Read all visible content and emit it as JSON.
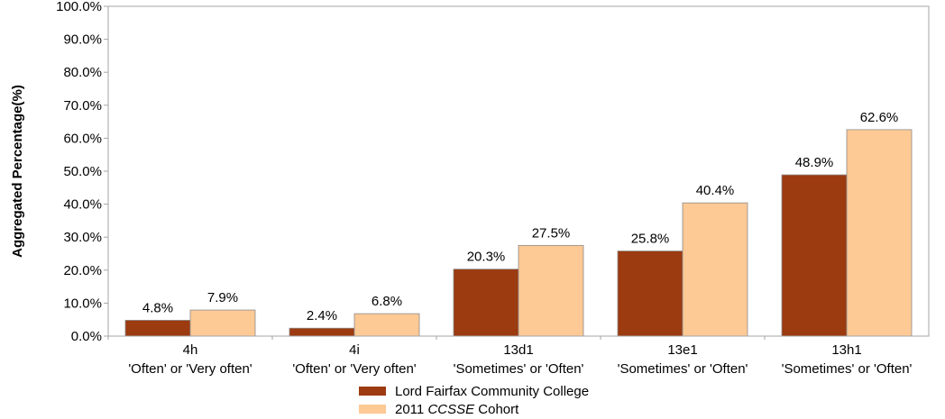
{
  "chart_data": {
    "type": "bar",
    "ylabel": "Aggregated Percentage(%)",
    "ylim": [
      0,
      100
    ],
    "yticks": [
      "0.0%",
      "10.0%",
      "20.0%",
      "30.0%",
      "40.0%",
      "50.0%",
      "60.0%",
      "70.0%",
      "80.0%",
      "90.0%",
      "100.0%"
    ],
    "categories": [
      {
        "code": "4h",
        "label": "'Often' or 'Very often'"
      },
      {
        "code": "4i",
        "label": "'Often' or 'Very often'"
      },
      {
        "code": "13d1",
        "label": "'Sometimes' or 'Often'"
      },
      {
        "code": "13e1",
        "label": "'Sometimes' or 'Often'"
      },
      {
        "code": "13h1",
        "label": "'Sometimes' or 'Often'"
      }
    ],
    "series": [
      {
        "name": "Lord Fairfax Community College",
        "color": "#9c3a10",
        "values": [
          4.8,
          2.4,
          20.3,
          25.8,
          48.9
        ],
        "labels": [
          "4.8%",
          "2.4%",
          "20.3%",
          "25.8%",
          "48.9%"
        ]
      },
      {
        "name_prefix": "2011 ",
        "name_italic": "CCSSE",
        "name_suffix": " Cohort",
        "color": "#fdc995",
        "values": [
          7.9,
          6.8,
          27.5,
          40.4,
          62.6
        ],
        "labels": [
          "7.9%",
          "6.8%",
          "27.5%",
          "40.4%",
          "62.6%"
        ]
      }
    ],
    "legend_position": "bottom",
    "grid": false
  }
}
